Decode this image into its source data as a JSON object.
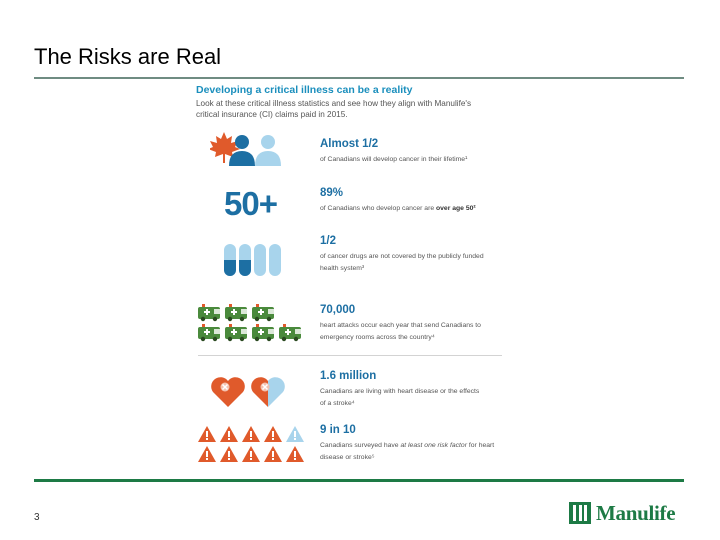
{
  "slide": {
    "title": "The Risks are Real",
    "page_number": "3",
    "logo_text": "Manulife"
  },
  "infographic": {
    "heading": "Developing a critical illness can be a reality",
    "intro": "Look at these critical illness statistics and see how they align with Manulife's critical insurance (CI) claims paid in 2015.",
    "age_badge": "50+",
    "stats": [
      {
        "value": "Almost 1/2",
        "desc": "of Canadians will develop cancer in their lifetime¹"
      },
      {
        "value": "89%",
        "desc_pre": "of Canadians who develop cancer are ",
        "desc_bold": "over age 50²"
      },
      {
        "value": "1/2",
        "desc": "of cancer drugs are not covered by the publicly funded health system³"
      },
      {
        "value": "70,000",
        "desc": "heart attacks occur each year that send Canadians to emergency rooms across the country⁴"
      },
      {
        "value": "1.6 million",
        "desc": "Canadians are living with heart disease or the effects of a stroke⁴"
      },
      {
        "value": "9 in 10",
        "desc_pre": "Canadians surveyed have ",
        "desc_em": "at least one risk factor",
        "desc_post": " for heart disease or stroke⁵"
      }
    ]
  },
  "colors": {
    "accent_orange": "#e05a2b",
    "accent_blue": "#1d6fa3",
    "light_blue": "#a8d4ec",
    "ambulance_green": "#4a8a3c",
    "brand_green": "#1d7a45"
  },
  "icons": [
    "maple-leaf-icon",
    "person-icon",
    "pill-capsule-icon",
    "ambulance-icon",
    "heart-icon",
    "warning-triangle-icon"
  ]
}
